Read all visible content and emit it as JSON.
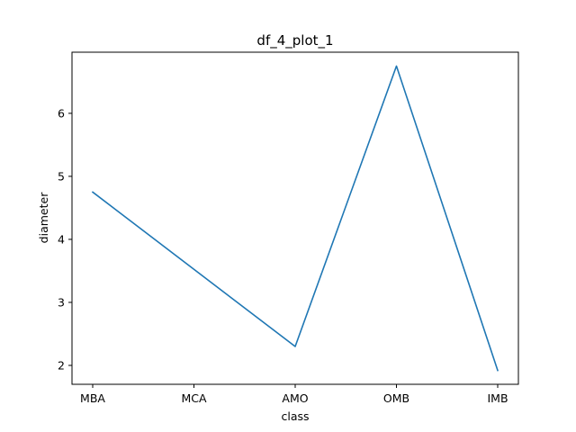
{
  "chart_data": {
    "type": "line",
    "title": "df_4_plot_1",
    "xlabel": "class",
    "ylabel": "diameter",
    "categories": [
      "MBA",
      "MCA",
      "AMO",
      "OMB",
      "IMB"
    ],
    "series": [
      {
        "values": [
          4.75,
          null,
          2.3,
          6.75,
          1.92
        ],
        "color": "#1f77b4"
      }
    ],
    "yticks": [
      2,
      3,
      4,
      5,
      6
    ],
    "ylim": [
      1.7,
      6.97
    ],
    "grid": false,
    "legend": "none"
  }
}
